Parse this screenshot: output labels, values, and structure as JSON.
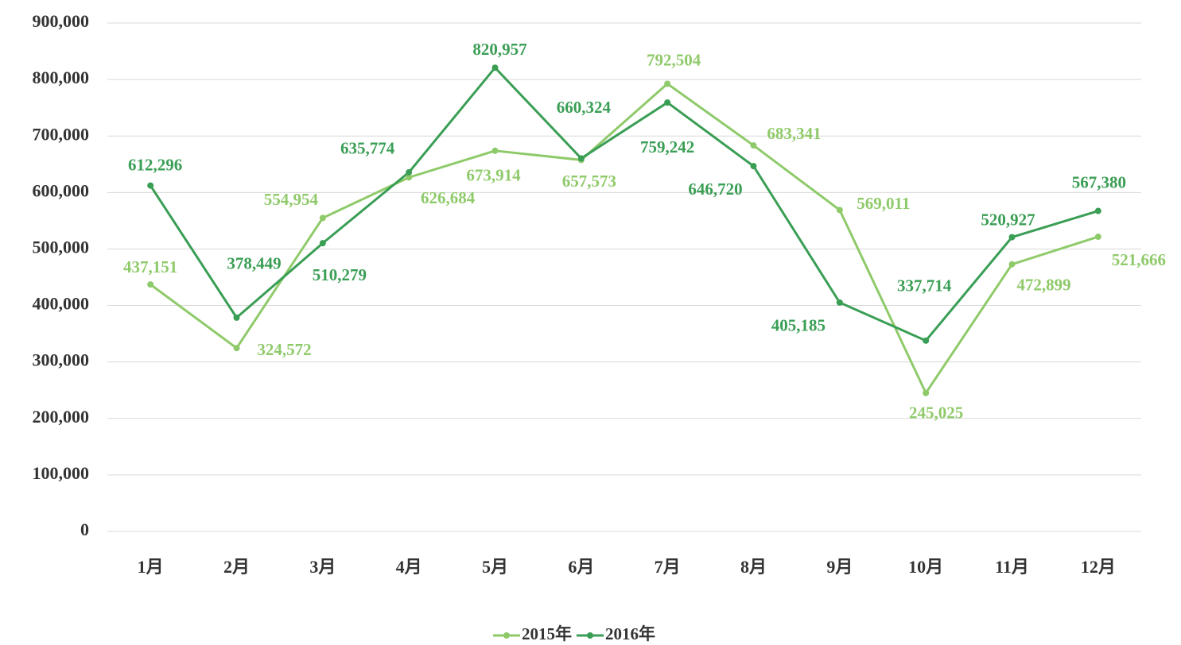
{
  "chart_data": {
    "type": "line",
    "categories": [
      "1月",
      "2月",
      "3月",
      "4月",
      "5月",
      "6月",
      "7月",
      "8月",
      "9月",
      "10月",
      "11月",
      "12月"
    ],
    "series": [
      {
        "name": "2015年",
        "color": "#8fca6a",
        "values": [
          437151,
          324572,
          554954,
          626684,
          673914,
          657573,
          792504,
          683341,
          569011,
          245025,
          472899,
          521666
        ],
        "value_labels": [
          "437,151",
          "324,572",
          "554,954",
          "626,684",
          "673,914",
          "657,573",
          "792,504",
          "683,341",
          "569,011",
          "245,025",
          "472,899",
          "521,666"
        ]
      },
      {
        "name": "2016年",
        "color": "#3a9e55",
        "values": [
          612296,
          378449,
          510279,
          635774,
          820957,
          660324,
          759242,
          646720,
          405185,
          337714,
          520927,
          567380
        ],
        "value_labels": [
          "612,296",
          "378,449",
          "510,279",
          "635,774",
          "820,957",
          "660,324",
          "759,242",
          "646,720",
          "405,185",
          "337,714",
          "520,927",
          "567,380"
        ]
      }
    ],
    "ylim": [
      0,
      900000
    ],
    "yticks": [
      0,
      {
        "value": 100000,
        "label": "100,000"
      },
      {
        "value": 200000,
        "label": "200,000"
      },
      {
        "value": 300000,
        "label": "300,000"
      },
      {
        "value": 400000,
        "label": "400,000"
      },
      {
        "value": 500000,
        "label": "500,000"
      },
      {
        "value": 600000,
        "label": "600,000"
      },
      {
        "value": 700000,
        "label": "700,000"
      },
      {
        "value": 800000,
        "label": "800,000"
      },
      {
        "value": 900000,
        "label": "900,000"
      }
    ],
    "grid": true,
    "legend": "bottom"
  }
}
